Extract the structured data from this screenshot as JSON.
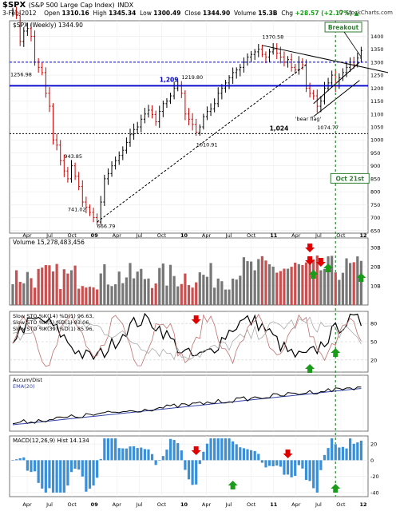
{
  "header": {
    "symbol": "$SPX",
    "name": "(S&P 500 Large Cap Index)",
    "exchange": "INDX",
    "date": "3-Feb-2012",
    "open_label": "Open",
    "open": "1310.16",
    "high_label": "High",
    "high": "1345.34",
    "low_label": "Low",
    "low": "1300.49",
    "close_label": "Close",
    "close": "1344.90",
    "volume_label": "Volume",
    "volume": "15.3B",
    "chg_label": "Chg",
    "chg": "+28.57 (+2.17%)",
    "chg_arrow": "▲",
    "brand": "© StockCharts.com"
  },
  "colors": {
    "up": "#000000",
    "down": "#cc0000",
    "annotation_blue": "#0000cc",
    "macd_bar": "#3a8fd6",
    "breakout_box": "#2e7d32",
    "green_line": "#2e8b2e",
    "red_arrow": "#e00000",
    "green_arrow": "#1a9c1a"
  },
  "chart_data": [
    {
      "panel": "price",
      "type": "ohlc",
      "title": "$SPX (Weekly) 1344.90",
      "ylim": [
        640,
        1460
      ],
      "y_ticks": [
        "1400",
        "1350",
        "1300",
        "1250",
        "1200",
        "1150",
        "1100",
        "1050",
        "1000",
        "950",
        "900",
        "850",
        "800",
        "750",
        "700",
        "650"
      ],
      "x_ticks": [
        "Apr",
        "Jul",
        "Oct",
        "09",
        "Apr",
        "Jul",
        "Oct",
        "10",
        "Apr",
        "Jul",
        "Oct",
        "11",
        "Apr",
        "Jul",
        "Oct",
        "12"
      ],
      "close_series": [
        1500,
        1480,
        1380,
        1420,
        1430,
        1400,
        1300,
        1280,
        1260,
        1180,
        1130,
        1000,
        980,
        920,
        880,
        850,
        900,
        860,
        820,
        760,
        740,
        720,
        700,
        683,
        760,
        850,
        870,
        900,
        920,
        940,
        960,
        990,
        1020,
        1040,
        1050,
        1080,
        1100,
        1115,
        1098,
        1070,
        1110,
        1140,
        1150,
        1170,
        1200,
        1210,
        1180,
        1100,
        1080,
        1060,
        1030,
        1050,
        1090,
        1110,
        1120,
        1140,
        1180,
        1200,
        1220,
        1240,
        1260,
        1270,
        1280,
        1300,
        1320,
        1330,
        1340,
        1350,
        1330,
        1320,
        1340,
        1350,
        1335,
        1320,
        1300,
        1310,
        1280,
        1270,
        1300,
        1290,
        1200,
        1180,
        1170,
        1130,
        1150,
        1200,
        1220,
        1250,
        1210,
        1240,
        1260,
        1280,
        1300,
        1290,
        1316,
        1345
      ],
      "annotations": [
        "1,209",
        "1,024",
        "1370.58",
        "1256.98",
        "1219.80",
        "1010.91",
        "943.85",
        "741.02",
        "666.79",
        "1074.77",
        "'bear flag'",
        "Breakout",
        "Oct 21st"
      ],
      "levels": [
        1300,
        1209,
        1024
      ]
    },
    {
      "panel": "volume",
      "type": "bar",
      "title": "Volume 15,278,483,456",
      "y_ticks": [
        "30B",
        "20B",
        "10B"
      ],
      "ylim": [
        0,
        35
      ],
      "unit": "B"
    },
    {
      "panel": "slow_sto",
      "type": "line",
      "legend": [
        {
          "text": "Slow STO %K(14) %D(1) 96.63,",
          "value": "96.63"
        },
        {
          "text": "Slow STO %K(5) %D(1) 93.06,",
          "value": "93.06"
        },
        {
          "text": "Slow STO %K(39) %D(1) 85.96,",
          "value": "85.96"
        }
      ],
      "y_ticks": [
        "80",
        "50",
        "20"
      ],
      "ylim": [
        0,
        100
      ]
    },
    {
      "panel": "accum_dist",
      "type": "line",
      "legend": [
        "Accum/Dist",
        "EMA(20)"
      ]
    },
    {
      "panel": "macd",
      "type": "bar",
      "legend": "MACD(12,26,9) Hist 14.134",
      "y_ticks": [
        "20",
        "0",
        "-20",
        "-40"
      ],
      "ylim": [
        -45,
        30
      ],
      "x_ticks": [
        "Apr",
        "Jul",
        "Oct",
        "09",
        "Apr",
        "Jul",
        "Oct",
        "10",
        "Apr",
        "Jul",
        "Oct",
        "11",
        "Apr",
        "Jul",
        "Oct",
        "12"
      ]
    }
  ]
}
